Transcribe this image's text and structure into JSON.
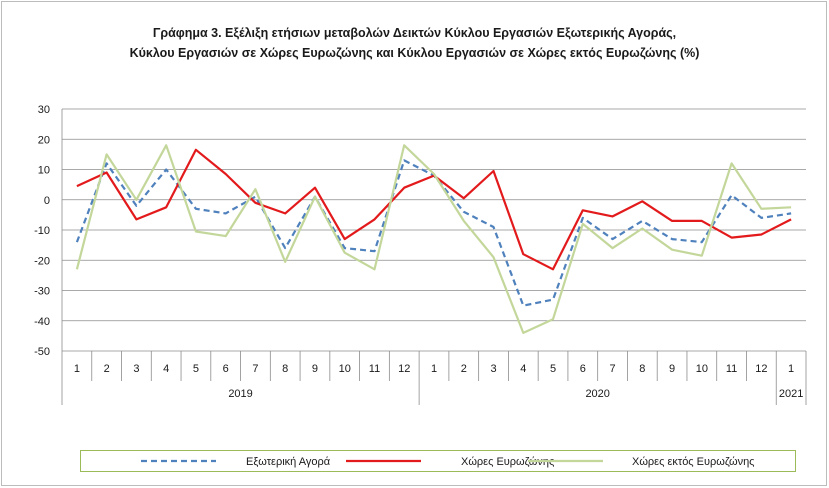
{
  "chart_data": {
    "type": "line",
    "title": "Γράφημα 3. Εξέλιξη  ετήσιων μεταβολών Δεικτών Κύκλου Εργασιών Εξωτερικής Αγοράς,",
    "subtitle": "Κύκλου Εργασιών σε Χώρες Ευρωζώνης και Κύκλου Εργασιών σε Χώρες εκτός Ευρωζώνης (%)",
    "x_months": [
      "1",
      "2",
      "3",
      "4",
      "5",
      "6",
      "7",
      "8",
      "9",
      "10",
      "11",
      "12",
      "1",
      "2",
      "3",
      "4",
      "5",
      "6",
      "7",
      "8",
      "9",
      "10",
      "11",
      "12",
      "1"
    ],
    "x_years": [
      {
        "label": "2019",
        "span": 12
      },
      {
        "label": "2020",
        "span": 12
      },
      {
        "label": "2021",
        "span": 1
      }
    ],
    "ylim": [
      -50,
      30
    ],
    "yticks": [
      "30",
      "20",
      "10",
      "0",
      "-10",
      "-20",
      "-30",
      "-40",
      "-50"
    ],
    "grid": true,
    "legend_position": "bottom",
    "series": [
      {
        "name": "Εξωτερική Αγορά",
        "color": "#4f81bd",
        "dash": "dashed",
        "values": [
          -14,
          12,
          -2,
          10,
          -3,
          -4.5,
          1,
          -16,
          1,
          -16,
          -17,
          13,
          8,
          -4,
          -9,
          -35,
          -33,
          -6,
          -13,
          -7,
          -13,
          -14,
          1.5,
          -6,
          -4.5
        ]
      },
      {
        "name": "Χώρες Ευρωζώνης",
        "color": "#e31a1c",
        "dash": "solid",
        "values": [
          4.5,
          9,
          -6.5,
          -2.5,
          16.5,
          8.5,
          -1,
          -4.5,
          4,
          -13,
          -6.5,
          4,
          8,
          0.5,
          9.5,
          -18,
          -23,
          -3.5,
          -5.5,
          -0.5,
          -7,
          -7,
          -12.5,
          -11.5,
          -6.5
        ]
      },
      {
        "name": "Χώρες εκτός Ευρωζώνης",
        "color": "#c4d79b",
        "dash": "solid",
        "values": [
          -23,
          15,
          0,
          18,
          -10.5,
          -12,
          3.5,
          -20.5,
          1,
          -17.5,
          -23,
          18,
          8.5,
          -7,
          -19,
          -44,
          -39.5,
          -8,
          -16,
          -9.5,
          -16.5,
          -18.5,
          12,
          -3,
          -2.5
        ]
      }
    ]
  }
}
